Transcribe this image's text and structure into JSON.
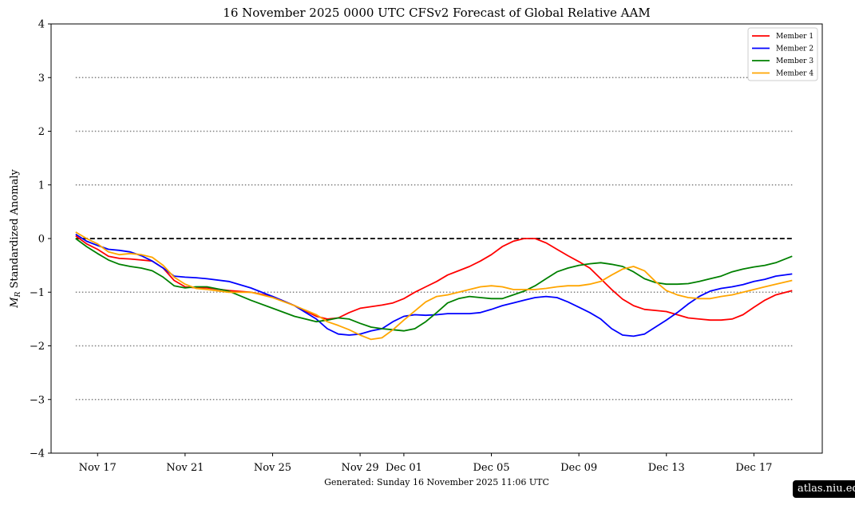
{
  "footer": {
    "generated_text": "Generated: Sunday  16  November  2025  11:06 UTC",
    "badge_text": "atlas.niu.edu"
  },
  "chart_data": {
    "type": "line",
    "title": "16  November  2025 0000 UTC   CFSv2 Forecast of Global Relative AAM",
    "xlabel": "",
    "ylabel_symbol": "M",
    "ylabel_subscript": "R",
    "ylabel_text": " Standardized Anomaly",
    "ylim": [
      -4,
      4
    ],
    "xlim": [
      "2025-11-14 21:00",
      "2025-12-20 03:00"
    ],
    "yticks": [
      -4,
      -3,
      -2,
      -1,
      0,
      1,
      2,
      3,
      4
    ],
    "ytick_labels": [
      "−4",
      "−3",
      "−2",
      "−1",
      "0",
      "1",
      "2",
      "3",
      "4"
    ],
    "xticks": [
      "2025-11-17",
      "2025-11-21",
      "2025-11-25",
      "2025-11-29",
      "2025-12-01",
      "2025-12-05",
      "2025-12-09",
      "2025-12-13",
      "2025-12-17"
    ],
    "xtick_labels": [
      "Nov 17",
      "Nov 21",
      "Nov 25",
      "Nov 29",
      "Dec 01",
      "Dec 05",
      "Dec 09",
      "Dec 13",
      "Dec 17"
    ],
    "reference_lines": [
      {
        "y": 0,
        "style": "dashed",
        "color": "#000000"
      },
      {
        "y": 3,
        "style": "dotted",
        "color": "#808080"
      },
      {
        "y": 2,
        "style": "dotted",
        "color": "#808080"
      },
      {
        "y": 1,
        "style": "dotted",
        "color": "#808080"
      },
      {
        "y": -1,
        "style": "dotted",
        "color": "#808080"
      },
      {
        "y": -2,
        "style": "dotted",
        "color": "#808080"
      },
      {
        "y": -3,
        "style": "dotted",
        "color": "#808080"
      }
    ],
    "reference_line_range": [
      "2025-11-16 00:00",
      "2025-12-18 18:00"
    ],
    "legend_position": "top-right",
    "grid": false,
    "series": [
      {
        "name": "Member 1",
        "color": "#ff0000",
        "x": [
          "2025-11-16 00:00",
          "2025-11-16 12:00",
          "2025-11-17 00:00",
          "2025-11-17 12:00",
          "2025-11-18 00:00",
          "2025-11-18 12:00",
          "2025-11-19 00:00",
          "2025-11-19 12:00",
          "2025-11-20 00:00",
          "2025-11-20 12:00",
          "2025-11-21 00:00",
          "2025-11-21 12:00",
          "2025-11-22 00:00",
          "2025-11-23 00:00",
          "2025-11-24 00:00",
          "2025-11-25 00:00",
          "2025-11-26 00:00",
          "2025-11-27 00:00",
          "2025-11-27 12:00",
          "2025-11-28 00:00",
          "2025-11-28 12:00",
          "2025-11-29 00:00",
          "2025-11-29 12:00",
          "2025-11-30 00:00",
          "2025-11-30 12:00",
          "2025-12-01 00:00",
          "2025-12-01 12:00",
          "2025-12-02 00:00",
          "2025-12-02 12:00",
          "2025-12-03 00:00",
          "2025-12-03 12:00",
          "2025-12-04 00:00",
          "2025-12-04 12:00",
          "2025-12-05 00:00",
          "2025-12-05 12:00",
          "2025-12-06 00:00",
          "2025-12-06 12:00",
          "2025-12-07 00:00",
          "2025-12-07 12:00",
          "2025-12-08 00:00",
          "2025-12-08 12:00",
          "2025-12-09 00:00",
          "2025-12-09 12:00",
          "2025-12-10 00:00",
          "2025-12-10 12:00",
          "2025-12-11 00:00",
          "2025-12-11 12:00",
          "2025-12-12 00:00",
          "2025-12-12 12:00",
          "2025-12-13 00:00",
          "2025-12-13 12:00",
          "2025-12-14 00:00",
          "2025-12-14 12:00",
          "2025-12-15 00:00",
          "2025-12-15 12:00",
          "2025-12-16 00:00",
          "2025-12-16 12:00",
          "2025-12-17 00:00",
          "2025-12-17 12:00",
          "2025-12-18 00:00",
          "2025-12-18 18:00"
        ],
        "y": [
          0.05,
          -0.1,
          -0.2,
          -0.33,
          -0.37,
          -0.38,
          -0.4,
          -0.42,
          -0.55,
          -0.78,
          -0.9,
          -0.92,
          -0.92,
          -0.97,
          -1.0,
          -1.08,
          -1.25,
          -1.45,
          -1.5,
          -1.48,
          -1.38,
          -1.3,
          -1.27,
          -1.24,
          -1.2,
          -1.12,
          -1.0,
          -0.9,
          -0.8,
          -0.68,
          -0.6,
          -0.52,
          -0.42,
          -0.3,
          -0.15,
          -0.05,
          0.0,
          0.0,
          -0.08,
          -0.2,
          -0.32,
          -0.43,
          -0.55,
          -0.75,
          -0.95,
          -1.13,
          -1.25,
          -1.32,
          -1.34,
          -1.36,
          -1.42,
          -1.48,
          -1.5,
          -1.52,
          -1.52,
          -1.5,
          -1.42,
          -1.28,
          -1.15,
          -1.05,
          -0.97
        ]
      },
      {
        "name": "Member 2",
        "color": "#0000ff",
        "x": [
          "2025-11-16 00:00",
          "2025-11-16 12:00",
          "2025-11-17 00:00",
          "2025-11-17 12:00",
          "2025-11-18 00:00",
          "2025-11-18 12:00",
          "2025-11-19 00:00",
          "2025-11-19 12:00",
          "2025-11-20 00:00",
          "2025-11-20 12:00",
          "2025-11-21 00:00",
          "2025-11-21 12:00",
          "2025-11-22 00:00",
          "2025-11-23 00:00",
          "2025-11-24 00:00",
          "2025-11-25 00:00",
          "2025-11-26 00:00",
          "2025-11-27 00:00",
          "2025-11-27 12:00",
          "2025-11-28 00:00",
          "2025-11-28 12:00",
          "2025-11-29 00:00",
          "2025-11-29 12:00",
          "2025-11-30 00:00",
          "2025-11-30 12:00",
          "2025-12-01 00:00",
          "2025-12-01 12:00",
          "2025-12-02 00:00",
          "2025-12-02 12:00",
          "2025-12-03 00:00",
          "2025-12-03 12:00",
          "2025-12-04 00:00",
          "2025-12-04 12:00",
          "2025-12-05 00:00",
          "2025-12-05 12:00",
          "2025-12-06 00:00",
          "2025-12-06 12:00",
          "2025-12-07 00:00",
          "2025-12-07 12:00",
          "2025-12-08 00:00",
          "2025-12-08 12:00",
          "2025-12-09 00:00",
          "2025-12-09 12:00",
          "2025-12-10 00:00",
          "2025-12-10 12:00",
          "2025-12-11 00:00",
          "2025-12-11 12:00",
          "2025-12-12 00:00",
          "2025-12-12 12:00",
          "2025-12-13 00:00",
          "2025-12-13 12:00",
          "2025-12-14 00:00",
          "2025-12-14 12:00",
          "2025-12-15 00:00",
          "2025-12-15 12:00",
          "2025-12-16 00:00",
          "2025-12-16 12:00",
          "2025-12-17 00:00",
          "2025-12-17 12:00",
          "2025-12-18 00:00",
          "2025-12-18 18:00"
        ],
        "y": [
          0.08,
          -0.05,
          -0.13,
          -0.2,
          -0.22,
          -0.25,
          -0.32,
          -0.42,
          -0.55,
          -0.7,
          -0.72,
          -0.73,
          -0.75,
          -0.8,
          -0.92,
          -1.08,
          -1.25,
          -1.5,
          -1.68,
          -1.78,
          -1.8,
          -1.78,
          -1.72,
          -1.68,
          -1.55,
          -1.45,
          -1.42,
          -1.43,
          -1.42,
          -1.4,
          -1.4,
          -1.4,
          -1.38,
          -1.32,
          -1.25,
          -1.2,
          -1.15,
          -1.1,
          -1.08,
          -1.1,
          -1.18,
          -1.28,
          -1.38,
          -1.5,
          -1.68,
          -1.8,
          -1.82,
          -1.78,
          -1.65,
          -1.52,
          -1.38,
          -1.22,
          -1.08,
          -0.98,
          -0.93,
          -0.9,
          -0.86,
          -0.8,
          -0.76,
          -0.7,
          -0.66
        ]
      },
      {
        "name": "Member 3",
        "color": "#008000",
        "x": [
          "2025-11-16 00:00",
          "2025-11-16 12:00",
          "2025-11-17 00:00",
          "2025-11-17 12:00",
          "2025-11-18 00:00",
          "2025-11-18 12:00",
          "2025-11-19 00:00",
          "2025-11-19 12:00",
          "2025-11-20 00:00",
          "2025-11-20 12:00",
          "2025-11-21 00:00",
          "2025-11-21 12:00",
          "2025-11-22 00:00",
          "2025-11-23 00:00",
          "2025-11-24 00:00",
          "2025-11-25 00:00",
          "2025-11-26 00:00",
          "2025-11-27 00:00",
          "2025-11-27 12:00",
          "2025-11-28 00:00",
          "2025-11-28 12:00",
          "2025-11-29 00:00",
          "2025-11-29 12:00",
          "2025-11-30 00:00",
          "2025-11-30 12:00",
          "2025-12-01 00:00",
          "2025-12-01 12:00",
          "2025-12-02 00:00",
          "2025-12-02 12:00",
          "2025-12-03 00:00",
          "2025-12-03 12:00",
          "2025-12-04 00:00",
          "2025-12-04 12:00",
          "2025-12-05 00:00",
          "2025-12-05 12:00",
          "2025-12-06 00:00",
          "2025-12-06 12:00",
          "2025-12-07 00:00",
          "2025-12-07 12:00",
          "2025-12-08 00:00",
          "2025-12-08 12:00",
          "2025-12-09 00:00",
          "2025-12-09 12:00",
          "2025-12-10 00:00",
          "2025-12-10 12:00",
          "2025-12-11 00:00",
          "2025-12-11 12:00",
          "2025-12-12 00:00",
          "2025-12-12 12:00",
          "2025-12-13 00:00",
          "2025-12-13 12:00",
          "2025-12-14 00:00",
          "2025-12-14 12:00",
          "2025-12-15 00:00",
          "2025-12-15 12:00",
          "2025-12-16 00:00",
          "2025-12-16 12:00",
          "2025-12-17 00:00",
          "2025-12-17 12:00",
          "2025-12-18 00:00",
          "2025-12-18 18:00"
        ],
        "y": [
          0.0,
          -0.15,
          -0.28,
          -0.4,
          -0.48,
          -0.52,
          -0.55,
          -0.6,
          -0.72,
          -0.88,
          -0.92,
          -0.9,
          -0.9,
          -0.98,
          -1.15,
          -1.3,
          -1.45,
          -1.55,
          -1.52,
          -1.48,
          -1.5,
          -1.58,
          -1.65,
          -1.68,
          -1.7,
          -1.72,
          -1.68,
          -1.55,
          -1.38,
          -1.2,
          -1.12,
          -1.08,
          -1.1,
          -1.12,
          -1.12,
          -1.05,
          -0.98,
          -0.88,
          -0.75,
          -0.62,
          -0.55,
          -0.5,
          -0.47,
          -0.45,
          -0.48,
          -0.52,
          -0.62,
          -0.75,
          -0.82,
          -0.85,
          -0.85,
          -0.84,
          -0.8,
          -0.75,
          -0.7,
          -0.62,
          -0.57,
          -0.53,
          -0.5,
          -0.45,
          -0.33
        ]
      },
      {
        "name": "Member 4",
        "color": "#ffa500",
        "x": [
          "2025-11-16 00:00",
          "2025-11-16 12:00",
          "2025-11-17 00:00",
          "2025-11-17 12:00",
          "2025-11-18 00:00",
          "2025-11-18 12:00",
          "2025-11-19 00:00",
          "2025-11-19 12:00",
          "2025-11-20 00:00",
          "2025-11-20 12:00",
          "2025-11-21 00:00",
          "2025-11-21 12:00",
          "2025-11-22 00:00",
          "2025-11-23 00:00",
          "2025-11-24 00:00",
          "2025-11-25 00:00",
          "2025-11-26 00:00",
          "2025-11-27 00:00",
          "2025-11-27 12:00",
          "2025-11-28 00:00",
          "2025-11-28 12:00",
          "2025-11-29 00:00",
          "2025-11-29 12:00",
          "2025-11-30 00:00",
          "2025-11-30 12:00",
          "2025-12-01 00:00",
          "2025-12-01 12:00",
          "2025-12-02 00:00",
          "2025-12-02 12:00",
          "2025-12-03 00:00",
          "2025-12-03 12:00",
          "2025-12-04 00:00",
          "2025-12-04 12:00",
          "2025-12-05 00:00",
          "2025-12-05 12:00",
          "2025-12-06 00:00",
          "2025-12-06 12:00",
          "2025-12-07 00:00",
          "2025-12-07 12:00",
          "2025-12-08 00:00",
          "2025-12-08 12:00",
          "2025-12-09 00:00",
          "2025-12-09 12:00",
          "2025-12-10 00:00",
          "2025-12-10 12:00",
          "2025-12-11 00:00",
          "2025-12-11 12:00",
          "2025-12-12 00:00",
          "2025-12-12 12:00",
          "2025-12-13 00:00",
          "2025-12-13 12:00",
          "2025-12-14 00:00",
          "2025-12-14 12:00",
          "2025-12-15 00:00",
          "2025-12-15 12:00",
          "2025-12-16 00:00",
          "2025-12-16 12:00",
          "2025-12-17 00:00",
          "2025-12-17 12:00",
          "2025-12-18 00:00",
          "2025-12-18 18:00"
        ],
        "y": [
          0.12,
          0.0,
          -0.1,
          -0.25,
          -0.3,
          -0.28,
          -0.3,
          -0.35,
          -0.5,
          -0.72,
          -0.85,
          -0.93,
          -0.95,
          -1.0,
          -1.0,
          -1.1,
          -1.25,
          -1.42,
          -1.55,
          -1.62,
          -1.7,
          -1.8,
          -1.88,
          -1.85,
          -1.7,
          -1.52,
          -1.35,
          -1.18,
          -1.08,
          -1.05,
          -1.0,
          -0.95,
          -0.9,
          -0.88,
          -0.9,
          -0.95,
          -0.95,
          -0.95,
          -0.93,
          -0.9,
          -0.88,
          -0.88,
          -0.85,
          -0.8,
          -0.68,
          -0.57,
          -0.52,
          -0.6,
          -0.8,
          -0.97,
          -1.05,
          -1.1,
          -1.12,
          -1.12,
          -1.08,
          -1.05,
          -1.0,
          -0.95,
          -0.9,
          -0.85,
          -0.78
        ]
      }
    ]
  }
}
